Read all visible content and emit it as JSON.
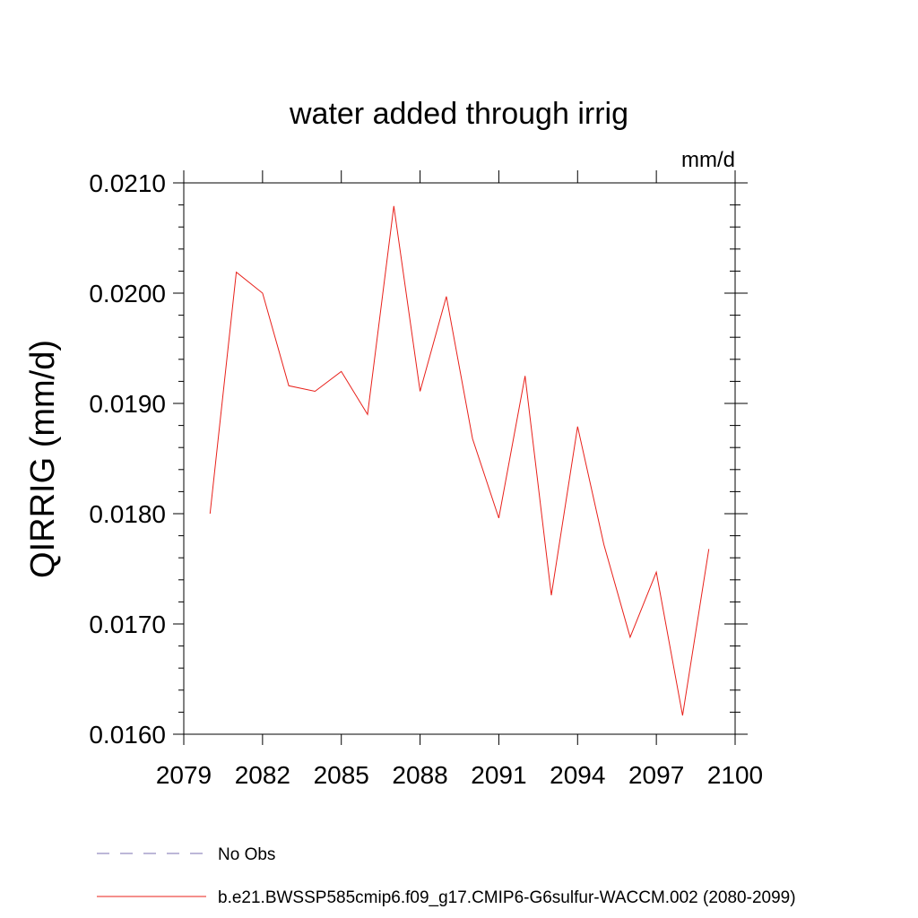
{
  "chart_data": {
    "type": "line",
    "title": "water added through irrig",
    "units_label": "mm/d",
    "ylabel": "QIRRIG  (mm/d)",
    "xlabel": "",
    "xlim": [
      2079,
      2100
    ],
    "ylim": [
      0.016,
      0.021
    ],
    "x_ticks": [
      2079,
      2082,
      2085,
      2088,
      2091,
      2094,
      2097,
      2100
    ],
    "x_tick_labels": [
      "2079",
      "2082",
      "2085",
      "2088",
      "2091",
      "2094",
      "2097",
      "2100"
    ],
    "y_ticks": [
      0.016,
      0.017,
      0.018,
      0.019,
      0.02,
      0.021
    ],
    "y_tick_labels": [
      "0.0160",
      "0.0170",
      "0.0180",
      "0.0190",
      "0.0200",
      "0.0210"
    ],
    "grid": false,
    "legend_position": "bottom",
    "series": [
      {
        "name": "b.e21.BWSSP585cmip6.f09_g17.CMIP6-G6sulfur-WACCM.002 (2080-2099)",
        "color": "#e8201a",
        "dash": "solid",
        "x": [
          2080,
          2081,
          2082,
          2083,
          2084,
          2085,
          2086,
          2087,
          2088,
          2089,
          2090,
          2091,
          2092,
          2093,
          2094,
          2095,
          2096,
          2097,
          2098,
          2099
        ],
        "y": [
          0.018,
          0.02019,
          0.02,
          0.01916,
          0.01911,
          0.01929,
          0.0189,
          0.02079,
          0.01911,
          0.01997,
          0.01868,
          0.01796,
          0.01925,
          0.01726,
          0.01879,
          0.01772,
          0.01688,
          0.01747,
          0.01617,
          0.01768
        ]
      }
    ],
    "legend": [
      {
        "label": "No Obs",
        "color": "#7b6fb0",
        "dash": "dashed"
      },
      {
        "label": "b.e21.BWSSP585cmip6.f09_g17.CMIP6-G6sulfur-WACCM.002 (2080-2099)",
        "color": "#e8201a",
        "dash": "solid"
      }
    ]
  }
}
